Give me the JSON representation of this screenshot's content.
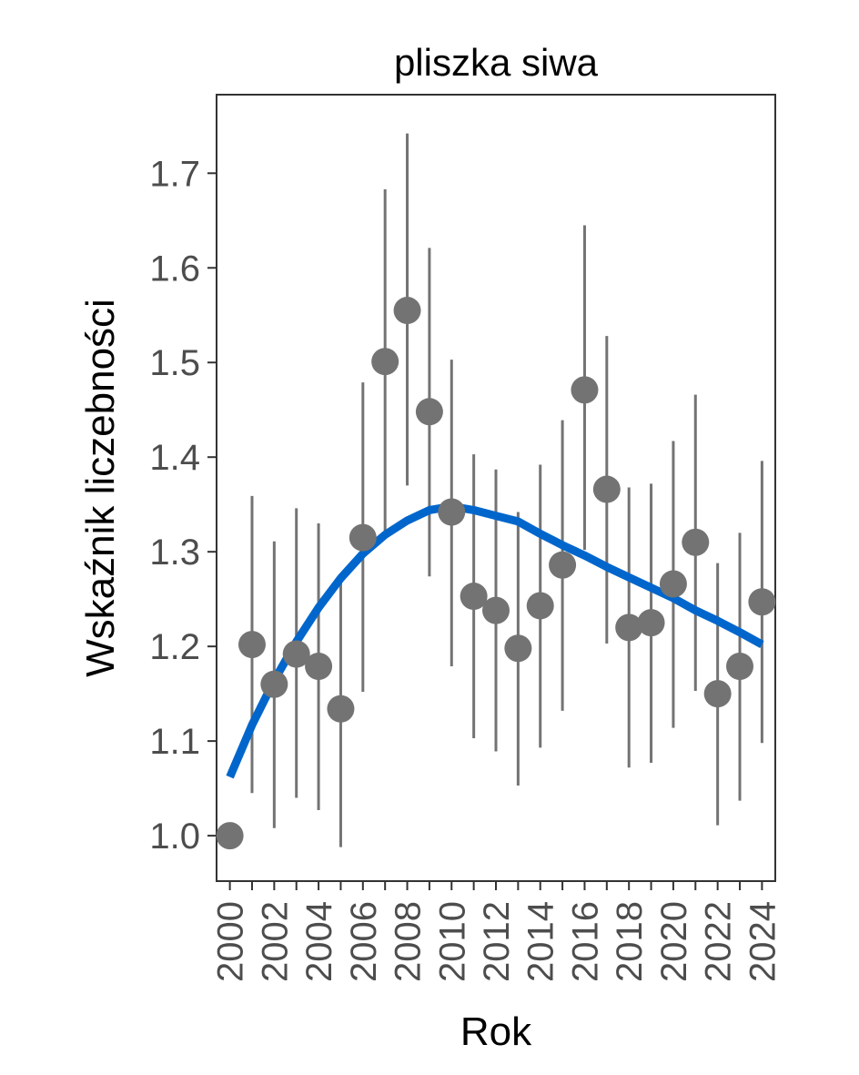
{
  "chart_data": {
    "type": "scatter",
    "title": "pliszka siwa",
    "xlabel": "Rok",
    "ylabel": "Wskaźnik liczebności",
    "x_ticks": [
      "2000",
      "2002",
      "2004",
      "2006",
      "2008",
      "2010",
      "2012",
      "2014",
      "2016",
      "2018",
      "2020",
      "2022",
      "2024"
    ],
    "y_ticks": [
      "1.0",
      "1.1",
      "1.2",
      "1.3",
      "1.4",
      "1.5",
      "1.6",
      "1.7"
    ],
    "xlim": [
      1999.4,
      2024.6
    ],
    "ylim": [
      0.952,
      1.783
    ],
    "grid": false,
    "legend": "none",
    "colors": {
      "points": "#737373",
      "errorbars": "#737373",
      "trend": "#0066cc"
    },
    "series": [
      {
        "type": "points_with_errorbars",
        "x": [
          2000,
          2001,
          2002,
          2003,
          2004,
          2005,
          2006,
          2007,
          2008,
          2009,
          2010,
          2011,
          2012,
          2013,
          2014,
          2015,
          2016,
          2017,
          2018,
          2019,
          2020,
          2021,
          2022,
          2023,
          2024
        ],
        "y": [
          1.0,
          1.202,
          1.16,
          1.192,
          1.179,
          1.134,
          1.315,
          1.501,
          1.555,
          1.448,
          1.342,
          1.253,
          1.238,
          1.198,
          1.243,
          1.286,
          1.471,
          1.366,
          1.22,
          1.225,
          1.266,
          1.31,
          1.15,
          1.179,
          1.247
        ],
        "lower": [
          null,
          1.045,
          1.008,
          1.04,
          1.027,
          0.988,
          1.152,
          1.321,
          1.37,
          1.274,
          1.179,
          1.103,
          1.089,
          1.053,
          1.093,
          1.132,
          1.302,
          1.203,
          1.072,
          1.077,
          1.114,
          1.153,
          1.011,
          1.037,
          1.098
        ],
        "upper": [
          null,
          1.359,
          1.311,
          1.346,
          1.33,
          1.269,
          1.479,
          1.683,
          1.742,
          1.621,
          1.503,
          1.403,
          1.387,
          1.342,
          1.392,
          1.439,
          1.645,
          1.528,
          1.368,
          1.372,
          1.417,
          1.466,
          1.288,
          1.32,
          1.396
        ]
      },
      {
        "type": "trend_line",
        "x": [
          2000,
          2001,
          2002,
          2003,
          2004,
          2005,
          2006,
          2007,
          2008,
          2009,
          2010,
          2011,
          2012,
          2013,
          2014,
          2015,
          2016,
          2017,
          2018,
          2019,
          2020,
          2021,
          2022,
          2023,
          2024
        ],
        "y": [
          1.062,
          1.117,
          1.164,
          1.205,
          1.241,
          1.272,
          1.298,
          1.318,
          1.333,
          1.344,
          1.348,
          1.344,
          1.338,
          1.332,
          1.319,
          1.307,
          1.296,
          1.284,
          1.273,
          1.262,
          1.251,
          1.238,
          1.227,
          1.215,
          1.202
        ]
      }
    ]
  }
}
